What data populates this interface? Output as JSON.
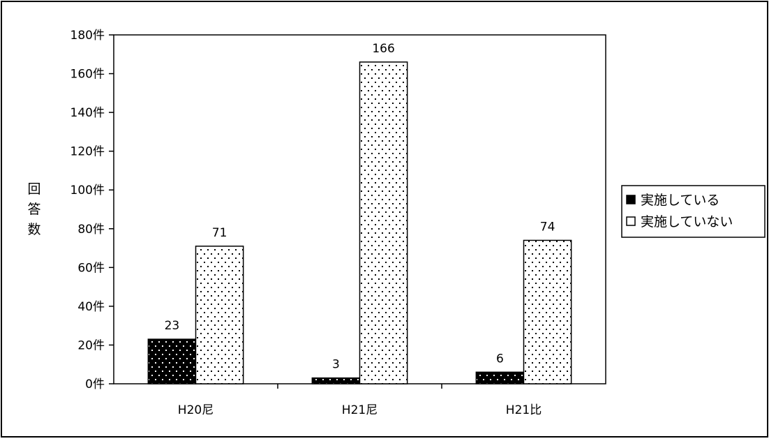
{
  "chart_data": {
    "type": "bar",
    "title": "",
    "xlabel": "",
    "ylabel": "回答数",
    "categories": [
      "H20尼",
      "H21尼",
      "H21比"
    ],
    "series": [
      {
        "name": "実施している",
        "values": [
          23,
          3,
          6
        ],
        "color": "#000000",
        "pattern": "white-dots"
      },
      {
        "name": "実施していない",
        "values": [
          71,
          166,
          74
        ],
        "color": "#ffffff",
        "pattern": "black-dots"
      }
    ],
    "ylim": [
      0,
      180
    ],
    "ytick_step": 20,
    "ytick_suffix": "件",
    "data_labels": true,
    "grid": false,
    "legend_position": "right"
  }
}
